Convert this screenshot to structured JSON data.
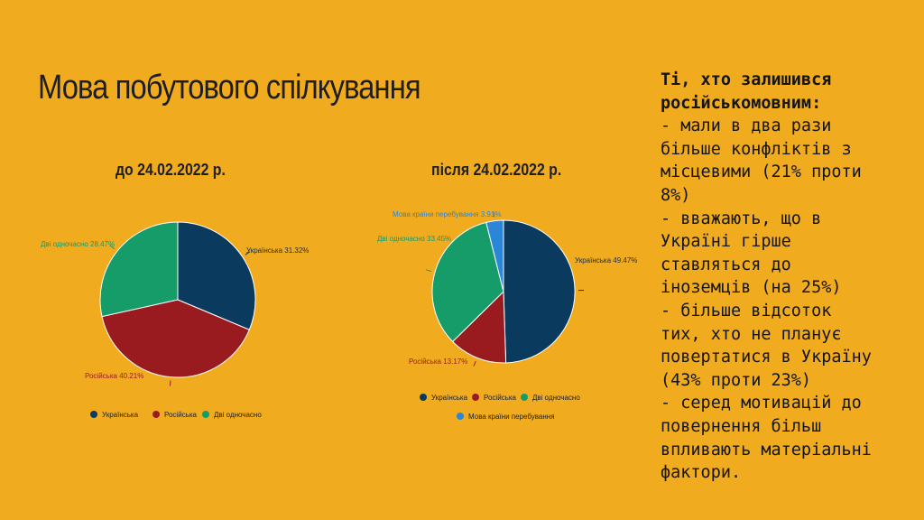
{
  "title": "Мова побутового спілкування",
  "side_text": {
    "lines": [
      {
        "text": "Ті, хто залишився",
        "bold": true
      },
      {
        "text": "російськомовним:",
        "bold": true
      },
      {
        "text": "- мали в два рази",
        "bold": false
      },
      {
        "text": "більше конфліктів з",
        "bold": false
      },
      {
        "text": "місцевими (21% проти",
        "bold": false
      },
      {
        "text": "8%)",
        "bold": false
      },
      {
        "text": "- вважають, що в",
        "bold": false
      },
      {
        "text": "Україні гірше",
        "bold": false
      },
      {
        "text": "ставляться до",
        "bold": false
      },
      {
        "text": "іноземців (на 25%)",
        "bold": false
      },
      {
        "text": "- більше відсоток",
        "bold": false
      },
      {
        "text": "тих, хто не планує",
        "bold": false
      },
      {
        "text": "повертатися в Україну",
        "bold": false
      },
      {
        "text": "(43% проти 23%)",
        "bold": false
      },
      {
        "text": "- серед мотивацій до",
        "bold": false
      },
      {
        "text": "повернення більш",
        "bold": false
      },
      {
        "text": "впливають матеріальні",
        "bold": false
      },
      {
        "text": "фактори.",
        "bold": false
      }
    ]
  },
  "colors": {
    "background": "#f0ab1f",
    "ukrainian": "#0b3a5f",
    "russian": "#9a1b1f",
    "both": "#169c69",
    "host_country": "#2b86d8"
  },
  "chart_data": [
    {
      "type": "pie",
      "title": "до 24.02.2022 р.",
      "slices": [
        {
          "label": "Українська",
          "value": 31.32,
          "data_label": "Українська 31.32%",
          "color": "#0b3a5f"
        },
        {
          "label": "Російська",
          "value": 40.21,
          "data_label": "Російська 40.21%",
          "color": "#9a1b1f"
        },
        {
          "label": "Дві одночасно",
          "value": 28.47,
          "data_label": "Дві одночасно 28.47%",
          "color": "#169c69"
        }
      ],
      "legend": [
        "Українська",
        "Російська",
        "Дві одночасно"
      ],
      "legend_position": "bottom"
    },
    {
      "type": "pie",
      "title": "після 24.02.2022 р.",
      "slices": [
        {
          "label": "Українська",
          "value": 49.47,
          "data_label": "Українська 49.47%",
          "color": "#0b3a5f"
        },
        {
          "label": "Російська",
          "value": 13.17,
          "data_label": "Російська 13.17%",
          "color": "#9a1b1f"
        },
        {
          "label": "Дві одночасно",
          "value": 33.45,
          "data_label": "Дві одночасно 33.45%",
          "color": "#169c69"
        },
        {
          "label": "Мова країни перебування",
          "value": 3.91,
          "data_label": "Мова країни перебування 3.91%",
          "color": "#2b86d8"
        }
      ],
      "legend": [
        "Українська",
        "Російська",
        "Дві одночасно",
        "Мова країни перебування"
      ],
      "legend_position": "bottom"
    }
  ]
}
